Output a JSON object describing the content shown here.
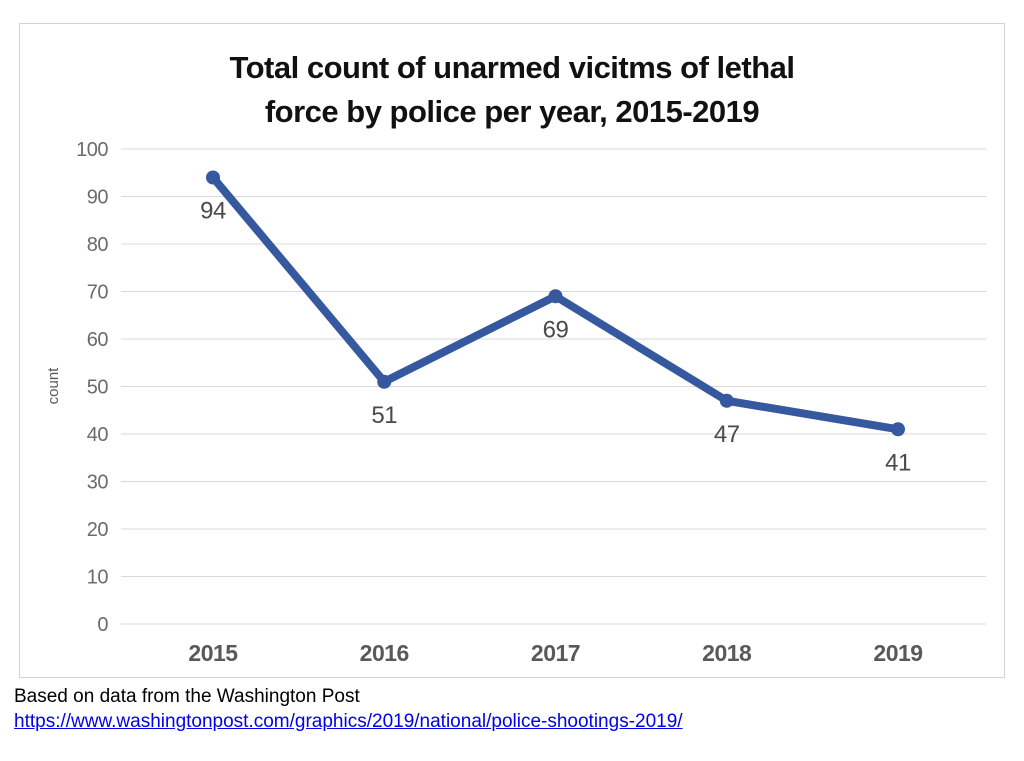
{
  "chart_data": {
    "type": "line",
    "title": "Total count of unarmed vicitms of lethal force by police per year, 2015-2019",
    "title_lines": [
      "Total count of unarmed vicitms of lethal",
      "force by police per year, 2015-2019"
    ],
    "categories": [
      "2015",
      "2016",
      "2017",
      "2018",
      "2019"
    ],
    "series": [
      {
        "name": "count",
        "values": [
          94,
          51,
          69,
          47,
          41
        ]
      }
    ],
    "data_labels": [
      "94",
      "51",
      "69",
      "47",
      "41"
    ],
    "xlabel": "",
    "ylabel": "count",
    "ylim": [
      0,
      100
    ],
    "yticks": [
      0,
      10,
      20,
      30,
      40,
      50,
      60,
      70,
      80,
      90,
      100
    ],
    "grid": "horizontal",
    "legend_position": "none",
    "line_color": "#35589F",
    "marker_color": "#35589F",
    "show_markers": true,
    "show_data_labels": true
  },
  "footer": {
    "source_text": "Based on data from the Washington Post",
    "link_text": "https://www.washingtonpost.com/graphics/2019/national/police-shootings-2019/",
    "link_color": "#0000EE"
  }
}
